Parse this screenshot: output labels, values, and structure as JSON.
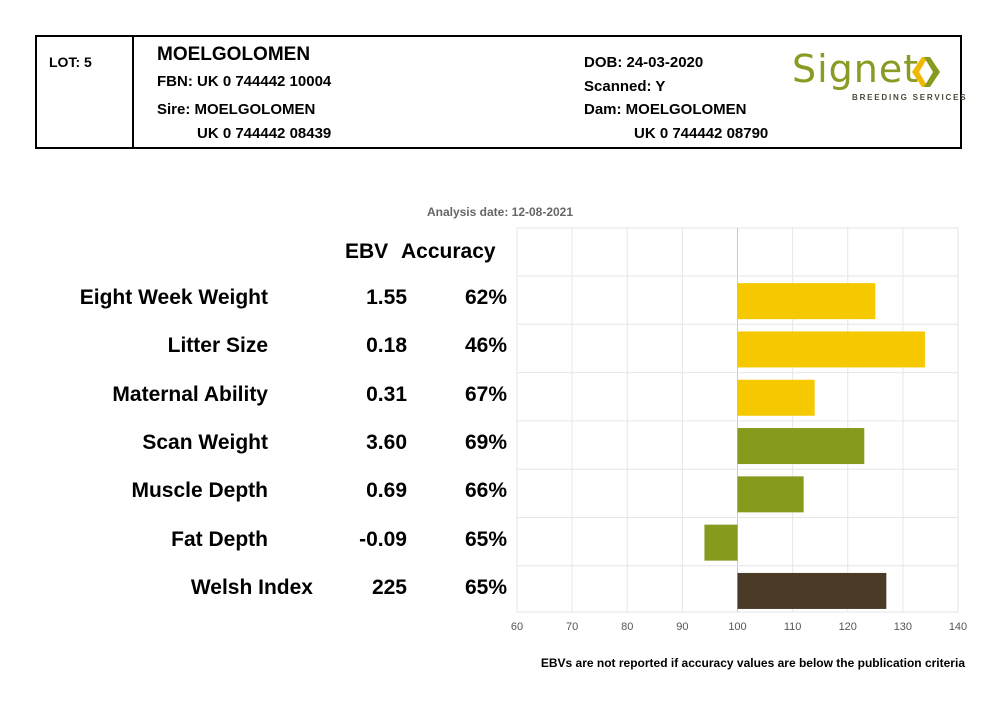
{
  "header": {
    "lot": "LOT: 5",
    "name": "MOELGOLOMEN",
    "fbn": "FBN: UK 0 744442 10004",
    "sire_label": "Sire: MOELGOLOMEN",
    "sire_id": "UK 0 744442 08439",
    "dob": "DOB: 24-03-2020",
    "scanned": "Scanned: Y",
    "dam_label": "Dam: MOELGOLOMEN",
    "dam_id": "UK 0 744442 08790",
    "logo_word": "Signet",
    "logo_sub": "BREEDING SERVICES"
  },
  "analysis_date": "Analysis date: 12-08-2021",
  "columns": {
    "ebv": "EBV",
    "accuracy": "Accuracy"
  },
  "footer": "EBVs are not reported if accuracy values are below the publication criteria",
  "colors": {
    "yellow": "#f6c800",
    "green": "#869a1d",
    "brown": "#4a3a26",
    "grid": "#e6e6e6"
  },
  "chart_data": {
    "type": "bar",
    "orientation": "horizontal",
    "baseline": 100,
    "xlim": [
      60,
      140
    ],
    "xticks": [
      60,
      70,
      80,
      90,
      100,
      110,
      120,
      130,
      140
    ],
    "grid": true,
    "categories": [
      "Eight Week Weight",
      "Litter Size",
      "Maternal Ability",
      "Scan Weight",
      "Muscle Depth",
      "Fat Depth",
      "Welsh Index"
    ],
    "ebv": [
      "1.55",
      "0.18",
      "0.31",
      "3.60",
      "0.69",
      "-0.09",
      "225"
    ],
    "accuracy": [
      "62%",
      "46%",
      "67%",
      "69%",
      "66%",
      "65%",
      "65%"
    ],
    "values": [
      125,
      134,
      114,
      123,
      112,
      94,
      127
    ],
    "bar_colors": [
      "yellow",
      "yellow",
      "yellow",
      "green",
      "green",
      "green",
      "brown"
    ]
  }
}
